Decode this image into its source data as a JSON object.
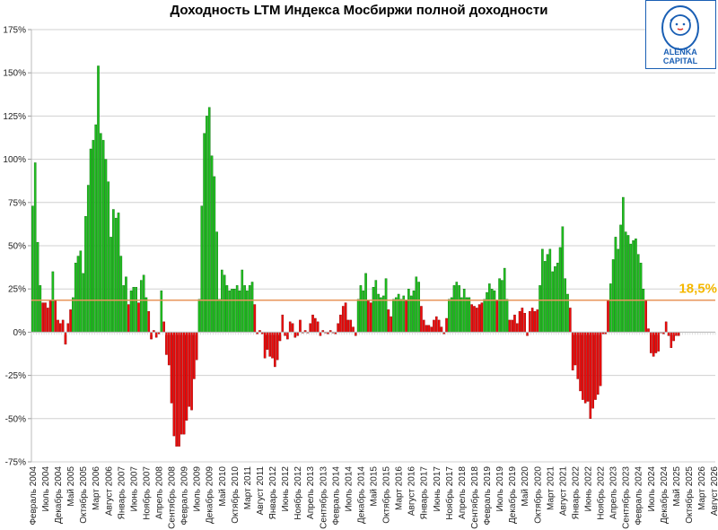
{
  "chart_data": {
    "type": "bar",
    "title": "Доходность LTM Индекса Мосбиржи полной доходности",
    "xlabel": "",
    "ylabel": "",
    "ylim": [
      -75,
      175
    ],
    "y_ticks": [
      "175%",
      "150%",
      "125%",
      "100%",
      "75%",
      "50%",
      "25%",
      "0%",
      "-25%",
      "-50%",
      "-75%"
    ],
    "y_tick_values": [
      175,
      150,
      125,
      100,
      75,
      50,
      25,
      0,
      -25,
      -50,
      -75
    ],
    "grid": true,
    "x_start": "Февраль 2004",
    "x_end": "Август 2026",
    "total_months": 271,
    "x_tick_labels": [
      "Февраль 2004",
      "Июль 2004",
      "Декабрь 2004",
      "Май 2005",
      "Октябрь 2005",
      "Март 2006",
      "Август 2006",
      "Январь 2007",
      "Июнь 2007",
      "Ноябрь 2007",
      "Апрель 2008",
      "Сентябрь 2008",
      "Февраль 2009",
      "Июль 2009",
      "Декабрь 2009",
      "Май 2010",
      "Октябрь 2010",
      "Март 2011",
      "Август 2011",
      "Январь 2012",
      "Июнь 2012",
      "Ноябрь 2012",
      "Апрель 2013",
      "Сентябрь 2013",
      "Февраль 2014",
      "Июль 2014",
      "Декабрь 2014",
      "Май 2015",
      "Октябрь 2015",
      "Март 2016",
      "Август 2016",
      "Январь 2017",
      "Июнь 2017",
      "Ноябрь 2017",
      "Апрель 2018",
      "Сентябрь 2018",
      "Февраль 2019",
      "Июль 2019",
      "Декабрь 2019",
      "Май 2020",
      "Октябрь 2020",
      "Март 2021",
      "Август 2021",
      "Январь 2022",
      "Июнь 2022",
      "Ноябрь 2022",
      "Апрель 2023",
      "Сентябрь 2023",
      "Февраль 2024",
      "Июль 2024",
      "Декабрь 2024",
      "Май 2025",
      "Октябрь 2025",
      "Март 2026",
      "Август 2026"
    ],
    "x_tick_step_months": 5,
    "values": [
      73,
      98,
      52,
      27,
      17,
      17,
      14,
      18,
      35,
      18,
      7,
      5,
      7,
      -7,
      5,
      13,
      20,
      40,
      44,
      47,
      34,
      67,
      85,
      106,
      111,
      120,
      154,
      115,
      111,
      100,
      87,
      55,
      71,
      66,
      69,
      44,
      27,
      32,
      16,
      24,
      26,
      26,
      17,
      30,
      33,
      20,
      12,
      -4,
      1,
      -3,
      -1,
      24,
      6,
      -13,
      -19,
      -41,
      -60,
      -66,
      -66,
      -59,
      -59,
      -51,
      -43,
      -45,
      -27,
      -16,
      19,
      73,
      115,
      125,
      130,
      102,
      90,
      58,
      19,
      36,
      33,
      27,
      24,
      25,
      25,
      27,
      24,
      36,
      27,
      24,
      27,
      29,
      16,
      -1,
      1,
      -1,
      -15,
      -10,
      -14,
      -15,
      -20,
      -16,
      -5,
      10,
      -2,
      -4,
      6,
      5,
      -3,
      -2,
      7,
      0,
      1,
      0,
      5,
      10,
      8,
      6,
      -2,
      1,
      0,
      -1,
      1,
      0,
      -1,
      5,
      10,
      15,
      17,
      7,
      7,
      3,
      -2,
      19,
      27,
      24,
      34,
      18,
      17,
      26,
      30,
      22,
      20,
      21,
      31,
      13,
      9,
      19,
      20,
      22,
      19,
      21,
      18,
      25,
      21,
      24,
      32,
      29,
      15,
      7,
      4,
      4,
      3,
      7,
      9,
      7,
      3,
      -1,
      8,
      19,
      20,
      27,
      29,
      27,
      20,
      25,
      20,
      20,
      16,
      15,
      14,
      16,
      17,
      19,
      23,
      28,
      25,
      24,
      18,
      31,
      30,
      37,
      19,
      7,
      7,
      10,
      5,
      12,
      14,
      11,
      -2,
      12,
      14,
      12,
      13,
      27,
      48,
      41,
      45,
      48,
      35,
      38,
      40,
      49,
      61,
      31,
      22,
      14,
      -22,
      -19,
      -27,
      -34,
      -39,
      -41,
      -40,
      -50,
      -44,
      -39,
      -36,
      -31,
      -1,
      -1,
      18,
      28,
      42,
      55,
      48,
      62,
      78,
      58,
      56,
      51,
      53,
      54,
      45,
      40,
      25,
      18,
      2,
      -12,
      -14,
      -12,
      -11,
      0,
      -1,
      6,
      -2,
      -9,
      -5,
      -2,
      -2
    ],
    "reference_line": {
      "value": 18.5,
      "label": "18,5%",
      "color": "#e8955a",
      "label_color": "#f5b800"
    },
    "colors": {
      "above": "#1fbf1f",
      "above_border": "#0a6e0a",
      "below": "#ee0a0a",
      "below_border": "#8a0000",
      "grid": "#d0d0d0"
    }
  },
  "logo": {
    "line1": "ALЁNKA",
    "line2": "CAPITAL",
    "color": "#1a5fb4"
  }
}
